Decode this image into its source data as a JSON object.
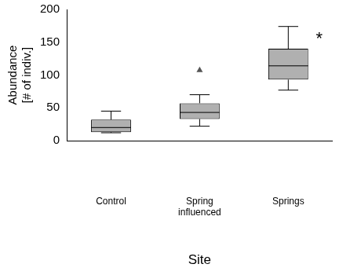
{
  "chart_data": {
    "type": "boxplot",
    "categories": [
      "Control",
      "Spring influenced",
      "Springs"
    ],
    "min": [
      12,
      22,
      77
    ],
    "q1": [
      13,
      33,
      93
    ],
    "median": [
      20,
      43,
      114
    ],
    "q3": [
      32,
      57,
      140
    ],
    "max": [
      45,
      70,
      174
    ],
    "outliers": [
      [],
      [
        108
      ],
      []
    ],
    "color": "#b0b0b0",
    "marker": "triangle",
    "xlabel": "Site",
    "ylabel": [
      "Abundance",
      "[# of indiv.]"
    ],
    "ylim": [
      0,
      200
    ],
    "yticks": [
      0,
      50,
      100,
      150,
      200
    ],
    "grid": false,
    "annotations": [
      {
        "text": "*",
        "category": "Springs"
      }
    ]
  }
}
